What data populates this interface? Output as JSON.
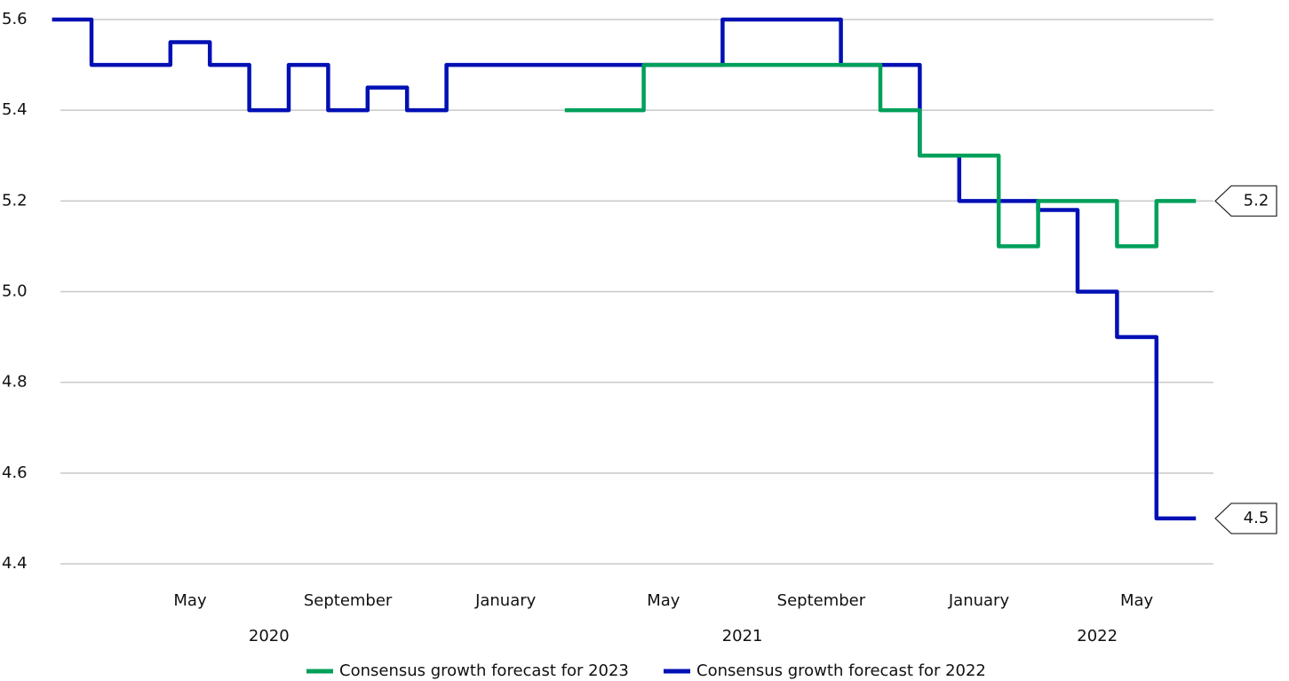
{
  "chart_data": {
    "type": "line",
    "step": true,
    "x": [
      "2020-02",
      "2020-03",
      "2020-04",
      "2020-05",
      "2020-06",
      "2020-07",
      "2020-08",
      "2020-09",
      "2020-10",
      "2020-11",
      "2020-12",
      "2021-01",
      "2021-02",
      "2021-03",
      "2021-04",
      "2021-05",
      "2021-06",
      "2021-07",
      "2021-08",
      "2021-09",
      "2021-10",
      "2021-11",
      "2021-12",
      "2022-01",
      "2022-02",
      "2022-03",
      "2022-04",
      "2022-05",
      "2022-06"
    ],
    "series": [
      {
        "name": "Consensus growth forecast for 2023",
        "color": "#00a05a",
        "end_label": "5.2",
        "values": [
          null,
          null,
          null,
          null,
          null,
          null,
          null,
          null,
          null,
          null,
          null,
          null,
          null,
          5.4,
          5.4,
          5.5,
          5.5,
          5.5,
          5.5,
          5.5,
          5.5,
          5.4,
          5.3,
          5.3,
          5.1,
          5.2,
          5.2,
          5.1,
          5.2
        ]
      },
      {
        "name": "Consensus growth forecast for 2022",
        "color": "#0010b4",
        "end_label": "4.5",
        "values": [
          5.6,
          5.5,
          5.5,
          5.55,
          5.5,
          5.4,
          5.5,
          5.4,
          5.45,
          5.4,
          5.5,
          5.5,
          5.5,
          5.5,
          5.5,
          5.5,
          5.5,
          5.6,
          5.6,
          5.6,
          5.5,
          5.5,
          5.3,
          5.2,
          5.2,
          5.18,
          5.0,
          4.9,
          4.5
        ]
      }
    ],
    "ylim": [
      4.4,
      5.6
    ],
    "yticks": [
      4.4,
      4.6,
      4.8,
      {
        "value": 5,
        "label": "5.0"
      },
      5.2,
      5.4,
      5.6
    ],
    "xticks": [
      {
        "value": "2020-05",
        "label": "May"
      },
      {
        "value": "2020-09",
        "label": "September"
      },
      {
        "value": "2021-01",
        "label": "January"
      },
      {
        "value": "2021-05",
        "label": "May"
      },
      {
        "value": "2021-09",
        "label": "September"
      },
      {
        "value": "2022-01",
        "label": "January"
      },
      {
        "value": "2022-05",
        "label": "May"
      }
    ],
    "x_groups": [
      {
        "value": "2020-07",
        "label": "2020"
      },
      {
        "value": "2021-07",
        "label": "2021"
      },
      {
        "value": "2022-04",
        "label": "2022"
      }
    ],
    "grid": true
  }
}
